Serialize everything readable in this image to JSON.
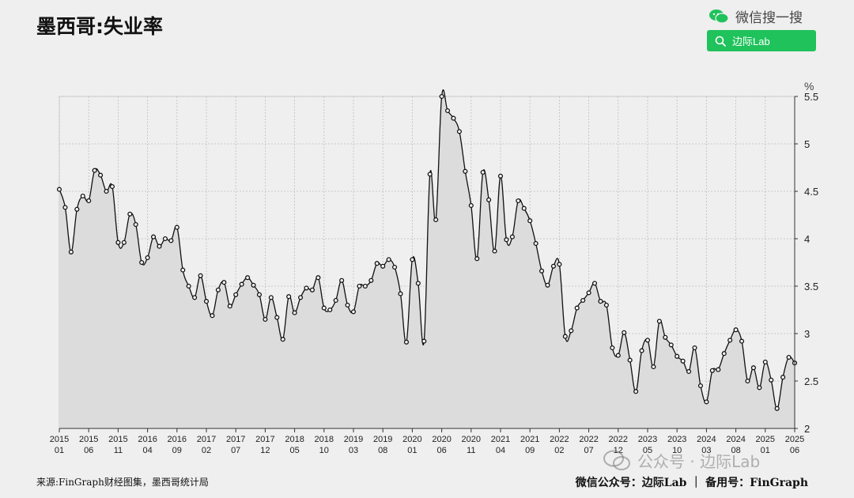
{
  "title": "墨西哥:失业率",
  "brand": {
    "label": "微信搜一搜",
    "search_label": "边际Lab"
  },
  "watermark": {
    "label": "公众号 · 边际Lab"
  },
  "footer": {
    "source": "来源:FinGraph财经图集，墨西哥统计局",
    "credit": "微信公众号：边际Lab ｜ 备用号：FinGraph"
  },
  "colors": {
    "line": "#111111",
    "area": "#dcdcdc",
    "grid": "#bdbdbd",
    "brand_green": "#20c25b"
  },
  "chart_data": {
    "type": "area",
    "unit_label": "%",
    "ylim": [
      2,
      5.5
    ],
    "yticks": [
      2,
      2.5,
      3,
      3.5,
      4,
      4.5,
      5,
      5.5
    ],
    "grid": true,
    "start": "2015-01",
    "xtick_labels": [
      [
        "2015",
        "01"
      ],
      [
        "2015",
        "06"
      ],
      [
        "2015",
        "11"
      ],
      [
        "2016",
        "04"
      ],
      [
        "2016",
        "09"
      ],
      [
        "2017",
        "02"
      ],
      [
        "2017",
        "07"
      ],
      [
        "2017",
        "12"
      ],
      [
        "2018",
        "05"
      ],
      [
        "2018",
        "10"
      ],
      [
        "2019",
        "03"
      ],
      [
        "2019",
        "08"
      ],
      [
        "2020",
        "01"
      ],
      [
        "2020",
        "06"
      ],
      [
        "2020",
        "11"
      ],
      [
        "2021",
        "04"
      ],
      [
        "2021",
        "09"
      ],
      [
        "2022",
        "02"
      ],
      [
        "2022",
        "07"
      ],
      [
        "2022",
        "12"
      ],
      [
        "2023",
        "05"
      ],
      [
        "2023",
        "10"
      ],
      [
        "2024",
        "03"
      ],
      [
        "2024",
        "08"
      ],
      [
        "2025",
        "01"
      ],
      [
        "2025",
        "06"
      ]
    ],
    "values": [
      4.52,
      4.33,
      3.86,
      4.31,
      4.45,
      4.4,
      4.72,
      4.67,
      4.5,
      4.55,
      3.96,
      3.96,
      4.26,
      4.15,
      3.75,
      3.8,
      4.02,
      3.92,
      4.0,
      3.98,
      4.12,
      3.67,
      3.5,
      3.38,
      3.61,
      3.34,
      3.19,
      3.46,
      3.54,
      3.29,
      3.41,
      3.52,
      3.59,
      3.51,
      3.41,
      3.15,
      3.38,
      3.17,
      2.94,
      3.39,
      3.22,
      3.38,
      3.48,
      3.46,
      3.59,
      3.27,
      3.25,
      3.35,
      3.56,
      3.3,
      3.23,
      3.5,
      3.5,
      3.56,
      3.74,
      3.71,
      3.78,
      3.7,
      3.42,
      2.91,
      3.78,
      3.53,
      2.92,
      4.68,
      4.2,
      5.5,
      5.35,
      5.27,
      5.13,
      4.71,
      4.35,
      3.79,
      4.7,
      4.41,
      3.87,
      4.66,
      3.99,
      4.02,
      4.4,
      4.32,
      4.19,
      3.95,
      3.66,
      3.51,
      3.71,
      3.73,
      2.97,
      3.03,
      3.27,
      3.35,
      3.43,
      3.53,
      3.34,
      3.3,
      2.85,
      2.77,
      3.01,
      2.72,
      2.39,
      2.82,
      2.93,
      2.65,
      3.13,
      2.96,
      2.88,
      2.76,
      2.71,
      2.6,
      2.85,
      2.45,
      2.28,
      2.61,
      2.62,
      2.79,
      2.93,
      3.04,
      2.92,
      2.5,
      2.64,
      2.43,
      2.7,
      2.51,
      2.21,
      2.54,
      2.75,
      2.69
    ]
  }
}
